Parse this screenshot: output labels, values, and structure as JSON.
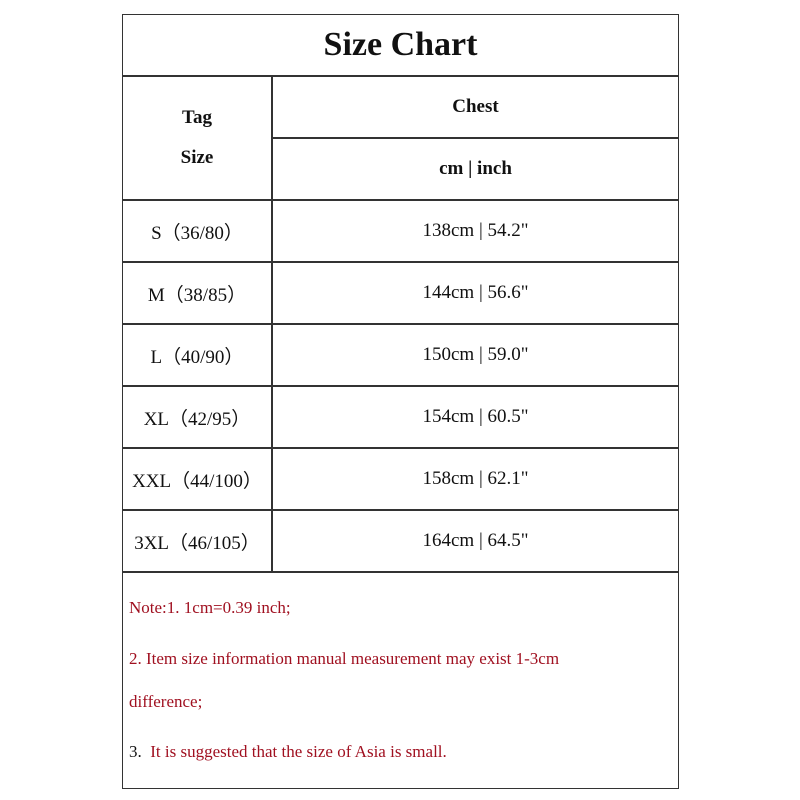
{
  "title": "Size Chart",
  "header": {
    "tag_line1": "Tag",
    "tag_line2": "Size",
    "chest": "Chest",
    "units": "cm | inch"
  },
  "rows": [
    {
      "size": "S（36/80）",
      "chest": "138cm | 54.2\""
    },
    {
      "size": "M（38/85）",
      "chest": "144cm | 56.6\""
    },
    {
      "size": "L（40/90）",
      "chest": "150cm | 59.0\""
    },
    {
      "size": "XL（42/95）",
      "chest": "154cm | 60.5\""
    },
    {
      "size": "XXL（44/100）",
      "chest": "158cm | 62.1\""
    },
    {
      "size": "3XL（46/105）",
      "chest": "164cm | 64.5\""
    }
  ],
  "notes": {
    "n1": "Note:1.    1cm=0.39 inch;",
    "n2a": "2.  Item size information manual measurement may exist 1-3cm",
    "n2b": "difference;",
    "n3_num": "3.",
    "n3_text": "  It is suggested that the size of Asia is small."
  },
  "colors": {
    "note": "#a01020",
    "border": "#333333"
  }
}
